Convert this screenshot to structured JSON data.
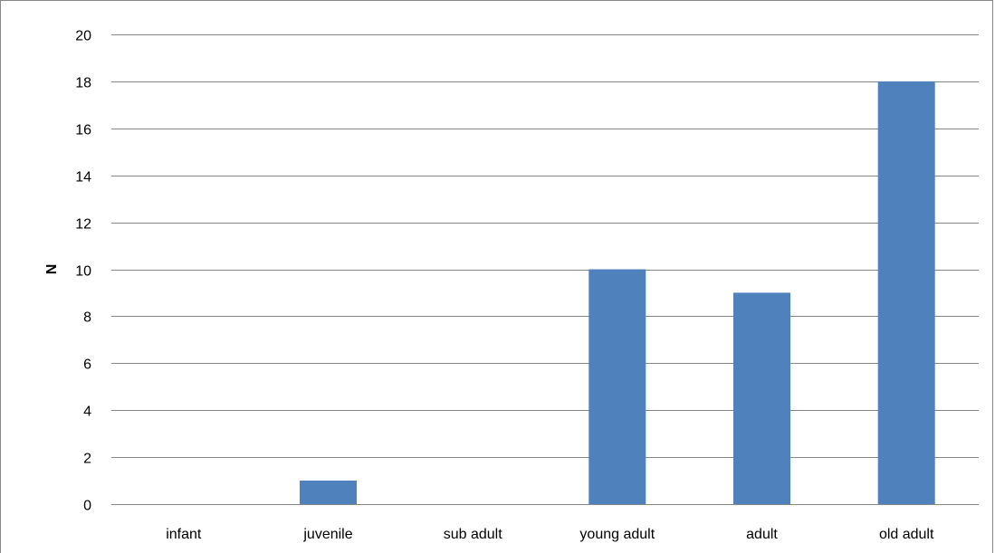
{
  "chart_data": {
    "type": "bar",
    "categories": [
      "infant",
      "juvenile",
      "sub adult",
      "young adult",
      "adult",
      "old adult"
    ],
    "values": [
      0,
      1,
      0,
      10,
      9,
      18
    ],
    "title": "",
    "xlabel": "",
    "ylabel": "N",
    "ylim": [
      0,
      20
    ],
    "yticks": [
      0,
      2,
      4,
      6,
      8,
      10,
      12,
      14,
      16,
      18,
      20
    ],
    "grid": true,
    "legend": "none",
    "colors": {
      "bar": "#4f81bd",
      "grid": "#868686",
      "frame": "#868686"
    }
  }
}
